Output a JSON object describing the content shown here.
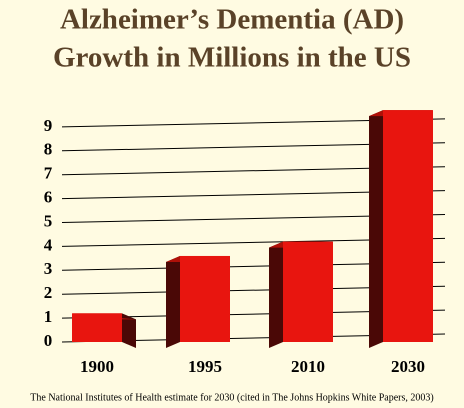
{
  "chart_data": {
    "type": "bar",
    "title": [
      "Alzheimer’s Dementia (AD)",
      "Growth in Millions in the US"
    ],
    "categories": [
      "1900",
      "1995",
      "2010",
      "2030"
    ],
    "values": [
      1.2,
      3.6,
      4.2,
      9.7
    ],
    "color": "#e8150f",
    "ylim": [
      0,
      10
    ],
    "yticks": [
      0,
      1,
      2,
      3,
      4,
      5,
      6,
      7,
      8,
      9
    ],
    "grid": true,
    "footnote": "The National Institutes of Health estimate for 2030 (cited in The Johns Hopkins White Papers, 2003)"
  }
}
